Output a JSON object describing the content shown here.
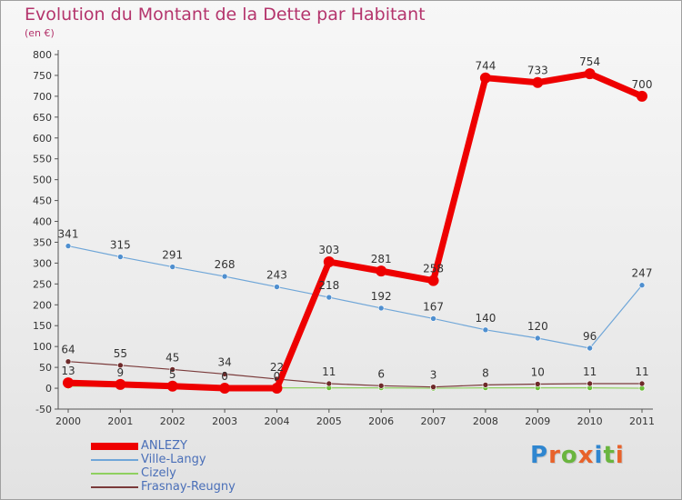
{
  "chart_data": {
    "type": "line",
    "title": "Evolution du Montant de la Dette par Habitant",
    "subtitle": "(en €)",
    "xlabel": "",
    "ylabel": "",
    "categories": [
      "2000",
      "2001",
      "2002",
      "2003",
      "2004",
      "2005",
      "2006",
      "2007",
      "2008",
      "2009",
      "2010",
      "2011"
    ],
    "ylim": [
      -50,
      800
    ],
    "yticks": [
      -50,
      0,
      50,
      100,
      150,
      200,
      250,
      300,
      350,
      400,
      450,
      500,
      550,
      600,
      650,
      700,
      750,
      800
    ],
    "grid": false,
    "legend_position": "bottom-left",
    "series": [
      {
        "name": "ANLEZY",
        "color": "#ee0000",
        "values": [
          13,
          9,
          5,
          0,
          0,
          303,
          281,
          258,
          744,
          733,
          754,
          700
        ],
        "labels": [
          "13",
          "9",
          "5",
          "0",
          "0",
          "303",
          "281",
          "258",
          "744",
          "733",
          "754",
          "700"
        ]
      },
      {
        "name": "Ville-Langy",
        "color": "#5b9bd5",
        "values": [
          341,
          315,
          291,
          268,
          243,
          218,
          192,
          167,
          140,
          120,
          96,
          247
        ],
        "labels": [
          "341",
          "315",
          "291",
          "268",
          "243",
          "218",
          "192",
          "167",
          "140",
          "120",
          "96",
          "247"
        ]
      },
      {
        "name": "Cizely",
        "color": "#80d040",
        "values": [
          5,
          4,
          2,
          1,
          1,
          1,
          1,
          0,
          1,
          1,
          1,
          0
        ],
        "labels": [
          "",
          "",
          "",
          "",
          "",
          "",
          "",
          "",
          "",
          "",
          "",
          ""
        ]
      },
      {
        "name": "Frasnay-Reugny",
        "color": "#6e2a2a",
        "values": [
          64,
          55,
          45,
          34,
          22,
          11,
          6,
          3,
          8,
          10,
          11,
          11
        ],
        "labels": [
          "64",
          "55",
          "45",
          "34",
          "22",
          "11",
          "6",
          "3",
          "8",
          "10",
          "11",
          "11"
        ]
      }
    ]
  },
  "logo": {
    "letters": [
      "P",
      "r",
      "o",
      "x",
      "i",
      "t",
      "i"
    ],
    "colors": [
      "#2f86d0",
      "#e8622a",
      "#6ab53e",
      "#e8622a",
      "#2f86d0",
      "#6ab53e",
      "#e8622a"
    ]
  }
}
